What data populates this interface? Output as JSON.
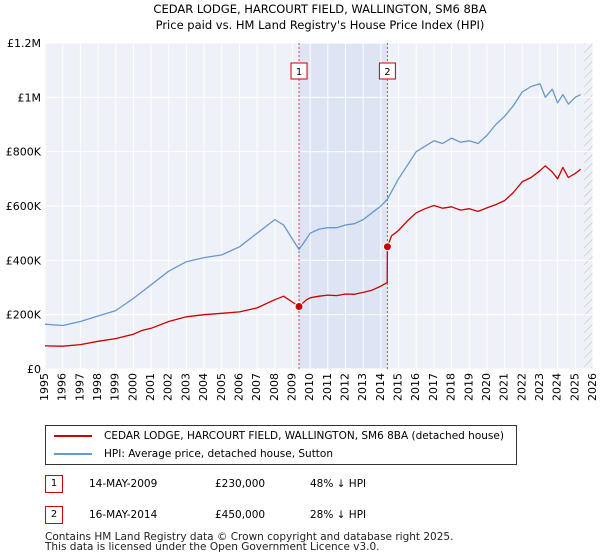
{
  "chart_data": {
    "type": "line",
    "title": "CEDAR LODGE, HARCOURT FIELD, WALLINGTON, SM6 8BA",
    "subtitle": "Price paid vs. HM Land Registry's House Price Index (HPI)",
    "xlabel": "",
    "ylabel": "",
    "xlim": [
      1995,
      2026
    ],
    "ylim": [
      0,
      1200000
    ],
    "grid": true,
    "x_ticks": [
      "1995",
      "1996",
      "1997",
      "1998",
      "1999",
      "2000",
      "2001",
      "2002",
      "2003",
      "2004",
      "2005",
      "2006",
      "2007",
      "2008",
      "2009",
      "2010",
      "2011",
      "2012",
      "2013",
      "2014",
      "2015",
      "2016",
      "2017",
      "2018",
      "2019",
      "2020",
      "2021",
      "2022",
      "2023",
      "2024",
      "2025",
      "2026"
    ],
    "y_ticks": [
      {
        "value": 0,
        "label": "£0"
      },
      {
        "value": 200000,
        "label": "£200K"
      },
      {
        "value": 400000,
        "label": "£400K"
      },
      {
        "value": 600000,
        "label": "£600K"
      },
      {
        "value": 800000,
        "label": "£800K"
      },
      {
        "value": 1000000,
        "label": "£1M"
      },
      {
        "value": 1200000,
        "label": "£1.2M"
      }
    ],
    "series": [
      {
        "name": "CEDAR LODGE, HARCOURT FIELD, WALLINGTON, SM6 8BA (detached house)",
        "color": "#cc0000",
        "x": [
          1995,
          1996,
          1997,
          1998,
          1999,
          2000,
          2000.5,
          2001,
          2002,
          2003,
          2004,
          2005,
          2006,
          2007,
          2008,
          2008.5,
          2009.37,
          2009.8,
          2010,
          2010.5,
          2011,
          2011.5,
          2012,
          2012.5,
          2013,
          2013.5,
          2014,
          2014.36,
          2014.37,
          2014.6,
          2015,
          2015.5,
          2016,
          2016.5,
          2017,
          2017.5,
          2018,
          2018.5,
          2019,
          2019.5,
          2020,
          2020.5,
          2021,
          2021.5,
          2022,
          2022.5,
          2023,
          2023.3,
          2023.7,
          2024,
          2024.3,
          2024.6,
          2025,
          2025.3
        ],
        "y": [
          85000,
          84000,
          90000,
          102000,
          112000,
          128000,
          142000,
          150000,
          175000,
          192000,
          200000,
          205000,
          210000,
          225000,
          255000,
          268000,
          230000,
          255000,
          262000,
          268000,
          272000,
          270000,
          276000,
          275000,
          282000,
          290000,
          305000,
          318000,
          450000,
          490000,
          510000,
          545000,
          575000,
          590000,
          602000,
          592000,
          597000,
          585000,
          590000,
          580000,
          593000,
          605000,
          620000,
          650000,
          690000,
          705000,
          730000,
          748000,
          725000,
          700000,
          742000,
          705000,
          720000,
          735000
        ]
      },
      {
        "name": "HPI: Average price, detached house, Sutton",
        "color": "#6699cc",
        "x": [
          1995,
          1996,
          1997,
          1998,
          1999,
          2000,
          2000.5,
          2001,
          2002,
          2003,
          2004,
          2005,
          2006,
          2007,
          2008,
          2008.5,
          2009.37,
          2009.8,
          2010,
          2010.5,
          2011,
          2011.5,
          2012,
          2012.5,
          2013,
          2013.5,
          2014,
          2014.37,
          2015,
          2015.5,
          2016,
          2016.5,
          2017,
          2017.5,
          2018,
          2018.5,
          2019,
          2019.5,
          2020,
          2020.5,
          2021,
          2021.5,
          2022,
          2022.5,
          2023,
          2023.3,
          2023.7,
          2024,
          2024.3,
          2024.6,
          2025,
          2025.3
        ],
        "y": [
          165000,
          160000,
          175000,
          195000,
          215000,
          260000,
          285000,
          310000,
          360000,
          395000,
          410000,
          420000,
          450000,
          500000,
          550000,
          530000,
          440000,
          480000,
          500000,
          515000,
          520000,
          520000,
          530000,
          535000,
          550000,
          575000,
          600000,
          625000,
          700000,
          750000,
          800000,
          820000,
          840000,
          830000,
          850000,
          835000,
          840000,
          830000,
          860000,
          900000,
          930000,
          970000,
          1020000,
          1040000,
          1050000,
          1000000,
          1030000,
          980000,
          1010000,
          975000,
          1000000,
          1010000
        ]
      }
    ],
    "annotations": [
      {
        "id": "1",
        "x": 2009.37,
        "y": 230000
      },
      {
        "id": "2",
        "x": 2014.37,
        "y": 450000
      }
    ],
    "shaded_range": [
      2009.37,
      2014.37
    ]
  },
  "legend": {
    "property_label": "CEDAR LODGE, HARCOURT FIELD, WALLINGTON, SM6 8BA (detached house)",
    "hpi_label": "HPI: Average price, detached house, Sutton",
    "property_color": "#cc0000",
    "hpi_color": "#6699cc"
  },
  "transactions": [
    {
      "id": "1",
      "date": "14-MAY-2009",
      "price": "£230,000",
      "hpi_diff": "48% ↓ HPI"
    },
    {
      "id": "2",
      "date": "16-MAY-2014",
      "price": "£450,000",
      "hpi_diff": "28% ↓ HPI"
    }
  ],
  "footer": {
    "line1": "Contains HM Land Registry data © Crown copyright and database right 2025.",
    "line2": "This data is licensed under the Open Government Licence v3.0."
  }
}
